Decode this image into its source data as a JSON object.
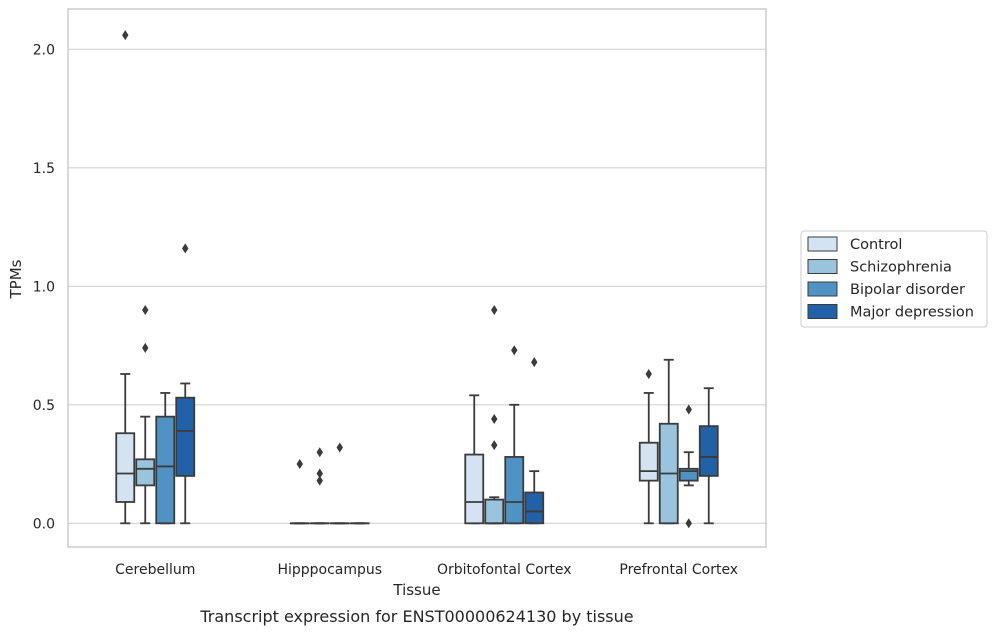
{
  "chart_data": {
    "type": "box",
    "title": "Transcript expression for ENST00000624130 by tissue",
    "xlabel": "Tissue",
    "ylabel": "TPMs",
    "ylim": [
      -0.1,
      2.17
    ],
    "yticks": [
      0.0,
      0.5,
      1.0,
      1.5,
      2.0
    ],
    "ytick_labels": [
      "0.0",
      "0.5",
      "1.0",
      "1.5",
      "2.0"
    ],
    "grid": "horizontal",
    "legend_position": "right",
    "categories": [
      "Cerebellum",
      "Hipppocampus",
      "Orbitofontal Cortex",
      "Prefrontal Cortex"
    ],
    "series": [
      {
        "name": "Control",
        "color": "#d4e3f2",
        "boxes": [
          {
            "whisker_low": 0.0,
            "q1": 0.09,
            "median": 0.21,
            "q3": 0.38,
            "whisker_high": 0.63,
            "outliers": [
              2.06
            ]
          },
          {
            "whisker_low": 0.0,
            "q1": 0.0,
            "median": 0.0,
            "q3": 0.0,
            "whisker_high": 0.0,
            "outliers": [
              0.25
            ]
          },
          {
            "whisker_low": 0.0,
            "q1": 0.0,
            "median": 0.09,
            "q3": 0.29,
            "whisker_high": 0.54,
            "outliers": []
          },
          {
            "whisker_low": 0.0,
            "q1": 0.18,
            "median": 0.22,
            "q3": 0.34,
            "whisker_high": 0.55,
            "outliers": [
              0.63
            ]
          }
        ]
      },
      {
        "name": "Schizophrenia",
        "color": "#9ac4de",
        "boxes": [
          {
            "whisker_low": 0.0,
            "q1": 0.16,
            "median": 0.23,
            "q3": 0.27,
            "whisker_high": 0.45,
            "outliers": [
              0.74,
              0.9
            ]
          },
          {
            "whisker_low": 0.0,
            "q1": 0.0,
            "median": 0.0,
            "q3": 0.0,
            "whisker_high": 0.0,
            "outliers": [
              0.18,
              0.21,
              0.3
            ]
          },
          {
            "whisker_low": 0.0,
            "q1": 0.0,
            "median": 0.0,
            "q3": 0.1,
            "whisker_high": 0.11,
            "outliers": [
              0.33,
              0.44,
              0.9
            ]
          },
          {
            "whisker_low": 0.0,
            "q1": 0.0,
            "median": 0.21,
            "q3": 0.42,
            "whisker_high": 0.69,
            "outliers": []
          }
        ]
      },
      {
        "name": "Bipolar disorder",
        "color": "#4f93c5",
        "boxes": [
          {
            "whisker_low": 0.0,
            "q1": 0.0,
            "median": 0.24,
            "q3": 0.45,
            "whisker_high": 0.55,
            "outliers": []
          },
          {
            "whisker_low": 0.0,
            "q1": 0.0,
            "median": 0.0,
            "q3": 0.0,
            "whisker_high": 0.0,
            "outliers": [
              0.32
            ]
          },
          {
            "whisker_low": 0.0,
            "q1": 0.0,
            "median": 0.09,
            "q3": 0.28,
            "whisker_high": 0.5,
            "outliers": [
              0.73
            ]
          },
          {
            "whisker_low": 0.16,
            "q1": 0.18,
            "median": 0.22,
            "q3": 0.23,
            "whisker_high": 0.3,
            "outliers": [
              0.0,
              0.48
            ]
          }
        ]
      },
      {
        "name": "Major depression",
        "color": "#2061a8",
        "boxes": [
          {
            "whisker_low": 0.0,
            "q1": 0.2,
            "median": 0.39,
            "q3": 0.53,
            "whisker_high": 0.59,
            "outliers": [
              1.16
            ]
          },
          {
            "whisker_low": 0.0,
            "q1": 0.0,
            "median": 0.0,
            "q3": 0.0,
            "whisker_high": 0.0,
            "outliers": []
          },
          {
            "whisker_low": 0.0,
            "q1": 0.0,
            "median": 0.05,
            "q3": 0.13,
            "whisker_high": 0.22,
            "outliers": [
              0.68
            ]
          },
          {
            "whisker_low": 0.0,
            "q1": 0.2,
            "median": 0.28,
            "q3": 0.41,
            "whisker_high": 0.57,
            "outliers": []
          }
        ]
      }
    ]
  }
}
